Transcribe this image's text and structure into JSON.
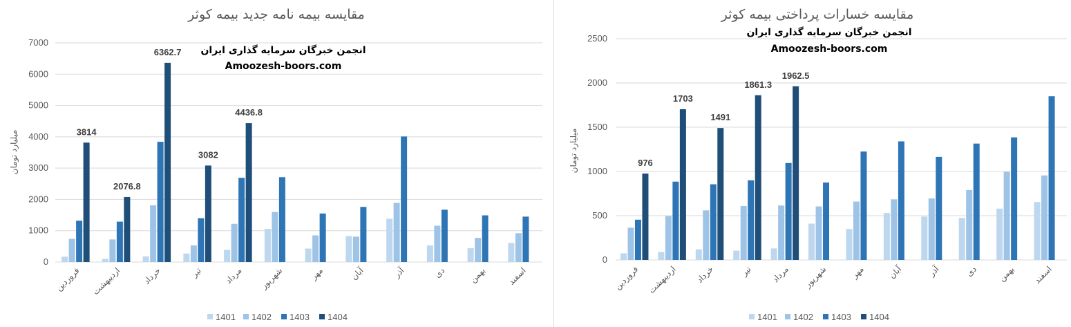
{
  "colors": {
    "s1401": "#bdd7ee",
    "s1402": "#9dc3e6",
    "s1403": "#2e75b6",
    "s1404": "#1f4e79"
  },
  "chart_data": [
    {
      "type": "bar",
      "title": "مقایسه بیمه نامه جدید بیمه کوثر",
      "ylabel": "میلیارد تومان",
      "watermark": [
        "انجمن خبرگان سرمایه گذاری ایران",
        "Amoozesh-boors.com"
      ],
      "ylim": [
        0,
        7000
      ],
      "yticks": [
        0,
        1000,
        2000,
        3000,
        4000,
        5000,
        6000,
        7000
      ],
      "grid": true,
      "legend": "bottom",
      "categories": [
        "فروردین",
        "اردیبهشت",
        "خرداد",
        "تیر",
        "مرداد",
        "شهریور",
        "مهر",
        "آبان",
        "آذر",
        "دی",
        "بهمن",
        "اسفند"
      ],
      "series": [
        {
          "name": "1401",
          "values": [
            170,
            100,
            180,
            270,
            390,
            1060,
            430,
            830,
            1380,
            530,
            440,
            610
          ]
        },
        {
          "name": "1402",
          "values": [
            740,
            720,
            1810,
            530,
            1220,
            1600,
            850,
            810,
            1890,
            1160,
            770,
            920
          ]
        },
        {
          "name": "1403",
          "values": [
            1320,
            1290,
            3840,
            1400,
            2690,
            2710,
            1550,
            1760,
            4010,
            1670,
            1490,
            1450
          ]
        },
        {
          "name": "1404",
          "values": [
            3814,
            2076.8,
            6362.7,
            3082,
            4436.8,
            null,
            null,
            null,
            null,
            null,
            null,
            null
          ]
        }
      ],
      "data_labels": [
        "3814",
        "2076.8",
        "6362.7",
        "3082",
        "4436.8"
      ]
    },
    {
      "type": "bar",
      "title": "مقایسه خسارات پرداختی بیمه کوثر",
      "ylabel": "میلیارد تومان",
      "watermark": [
        "انجمن خبرگان سرمایه گذاری ایران",
        "Amoozesh-boors.com"
      ],
      "ylim": [
        0,
        2500
      ],
      "yticks": [
        0,
        500,
        1000,
        1500,
        2000,
        2500
      ],
      "grid": true,
      "legend": "bottom",
      "categories": [
        "فروردین",
        "اردیبهشت",
        "خرداد",
        "تیر",
        "مرداد",
        "شهریور",
        "مهر",
        "آبان",
        "آذر",
        "دی",
        "بهمن",
        "اسفند"
      ],
      "series": [
        {
          "name": "1401",
          "values": [
            75,
            90,
            120,
            105,
            130,
            410,
            350,
            530,
            490,
            475,
            580,
            655
          ]
        },
        {
          "name": "1402",
          "values": [
            365,
            495,
            560,
            610,
            615,
            605,
            660,
            685,
            695,
            790,
            995,
            955
          ]
        },
        {
          "name": "1403",
          "values": [
            455,
            885,
            855,
            900,
            1095,
            875,
            1225,
            1340,
            1165,
            1315,
            1385,
            1850
          ]
        },
        {
          "name": "1404",
          "values": [
            976,
            1703,
            1491,
            1861.3,
            1962.5,
            null,
            null,
            null,
            null,
            null,
            null,
            null
          ]
        }
      ],
      "data_labels": [
        "976",
        "1703",
        "1491",
        "1861.3",
        "1962.5"
      ]
    }
  ]
}
